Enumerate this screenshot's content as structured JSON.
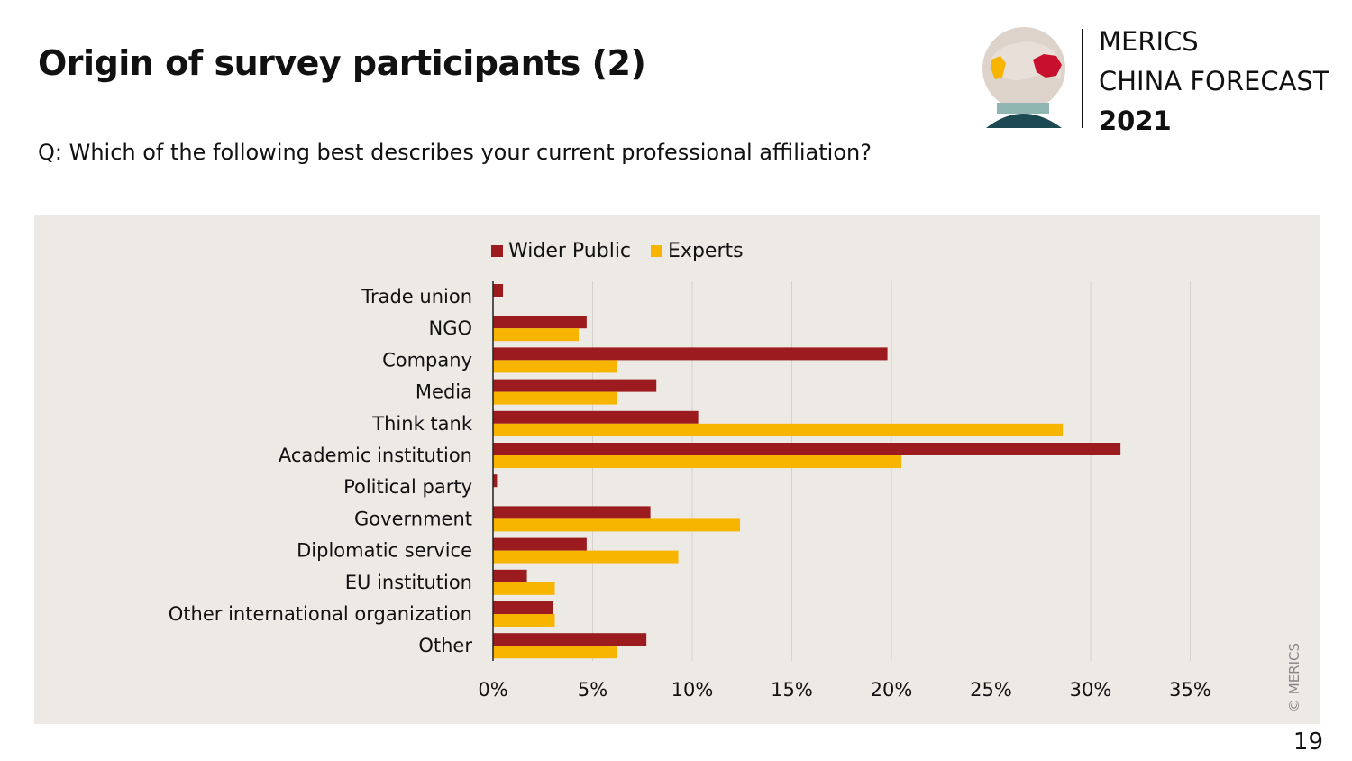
{
  "slide": {
    "title": "Origin of survey participants (2)",
    "question": "Q: Which of the following best describes your current professional affiliation?",
    "page_number": "19",
    "copyright": "© MERICS"
  },
  "brand": {
    "line1": "MERICS",
    "line2": "CHINA FORECAST",
    "year": "2021"
  },
  "colors": {
    "wider_public": "#9b1b1f",
    "experts": "#f7b500",
    "panel_bg": "#ede9e5",
    "gridline": "#d6d1cc"
  },
  "chart_data": {
    "type": "bar",
    "orientation": "horizontal",
    "categories": [
      "Trade union",
      "NGO",
      "Company",
      "Media",
      "Think tank",
      "Academic institution",
      "Political party",
      "Government",
      "Diplomatic service",
      "EU institution",
      "Other international organization",
      "Other"
    ],
    "series": [
      {
        "name": "Wider Public",
        "values": [
          0.5,
          4.7,
          19.8,
          8.2,
          10.3,
          31.5,
          0.2,
          7.9,
          4.7,
          1.7,
          3.0,
          7.7
        ]
      },
      {
        "name": "Experts",
        "values": [
          0,
          4.3,
          6.2,
          6.2,
          28.6,
          20.5,
          0,
          12.4,
          9.3,
          3.1,
          3.1,
          6.2
        ]
      }
    ],
    "xlim": [
      0,
      35
    ],
    "xticks": [
      0,
      5,
      10,
      15,
      20,
      25,
      30,
      35
    ],
    "tick_format": "{v}%",
    "grid": true,
    "legend": "top"
  }
}
